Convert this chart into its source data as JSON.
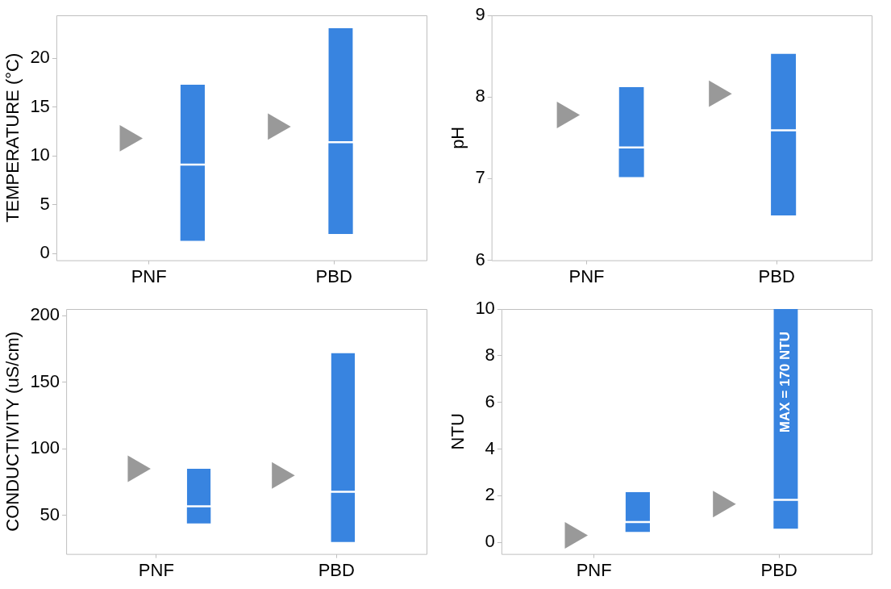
{
  "chart_data": [
    {
      "type": "bar",
      "ylabel": "TEMPERATURE (°C)",
      "categories": [
        "PNF",
        "PBD"
      ],
      "ylim": [
        -0.7,
        24.4
      ],
      "yticks": [
        0,
        5,
        10,
        15,
        20
      ],
      "grid": false,
      "legend": false,
      "series": [
        {
          "color": "#3884e0",
          "base": [
            1.3,
            2.0
          ],
          "values": [
            7.7,
            9.3
          ]
        },
        {
          "color": "#3884e0",
          "base": [
            9.0,
            11.3
          ],
          "values": [
            8.3,
            11.8
          ]
        },
        {
          "type": "scatter",
          "color": "#999999",
          "marker": "triangle",
          "values": [
            11.8,
            13.0
          ]
        }
      ]
    },
    {
      "type": "bar",
      "ylabel": "pH",
      "categories": [
        "PNF",
        "PBD"
      ],
      "ylim": [
        6,
        9
      ],
      "yticks": [
        6,
        7,
        8,
        9
      ],
      "grid": false,
      "legend": false,
      "series": [
        {
          "color": "#3884e0",
          "base": [
            7.02,
            6.55
          ],
          "values": [
            0.35,
            1.03
          ]
        },
        {
          "color": "#3884e0",
          "base": [
            7.37,
            7.58
          ],
          "values": [
            0.75,
            0.95
          ]
        },
        {
          "type": "scatter",
          "color": "#999999",
          "marker": "triangle",
          "values": [
            7.78,
            8.04
          ]
        }
      ]
    },
    {
      "type": "bar",
      "ylabel": "CONDUCTIVITY (uS/cm)",
      "categories": [
        "PNF",
        "PBD"
      ],
      "ylim": [
        21,
        205
      ],
      "yticks": [
        50,
        100,
        150,
        200
      ],
      "grid": false,
      "legend": false,
      "series": [
        {
          "color": "#3884e0",
          "base": [
            44,
            30
          ],
          "values": [
            12,
            37
          ]
        },
        {
          "color": "#3884e0",
          "base": [
            56,
            67
          ],
          "values": [
            29,
            105
          ]
        },
        {
          "type": "scatter",
          "color": "#999999",
          "marker": "triangle",
          "values": [
            85,
            80
          ]
        }
      ]
    },
    {
      "type": "bar",
      "ylabel": "NTU",
      "categories": [
        "PNF",
        "PBD"
      ],
      "ylim": [
        -0.5,
        10
      ],
      "yticks": [
        0,
        2,
        4,
        6,
        8,
        10
      ],
      "grid": false,
      "legend": false,
      "annotations": [
        "MAX = 170 NTU"
      ],
      "series": [
        {
          "color": "#3884e0",
          "base": [
            0.45,
            0.58
          ],
          "values": [
            0.38,
            1.2
          ]
        },
        {
          "color": "#3884e0",
          "base": [
            0.83,
            1.78
          ],
          "values": [
            1.33,
            8.22
          ]
        },
        {
          "type": "scatter",
          "color": "#999999",
          "marker": "triangle",
          "values": [
            0.3,
            1.64
          ]
        }
      ]
    }
  ]
}
